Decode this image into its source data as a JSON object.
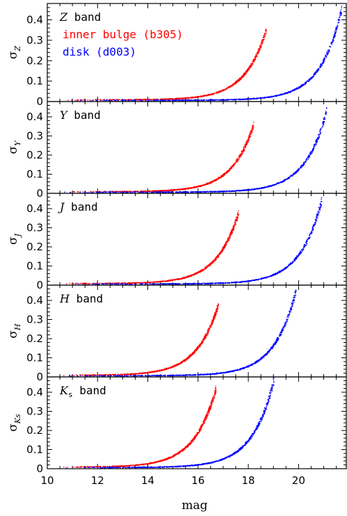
{
  "chart_data": {
    "type": "scatter",
    "xlabel": "mag",
    "xlim": [
      10,
      21.9
    ],
    "x_ticks": [
      "10",
      "12",
      "14",
      "16",
      "18",
      "20"
    ],
    "y_ticks": [
      "0",
      "0.1",
      "0.2",
      "0.3",
      "0.4"
    ],
    "legend": {
      "placement": "top-left of first panel",
      "entries": [
        "inner bulge (b305)",
        "disk (d003)"
      ]
    },
    "colors": {
      "bulge": "#ff0000",
      "disk": "#0000ff"
    },
    "panels": [
      {
        "band_label": "Z band",
        "band_letter": "Z",
        "band_rest": " band",
        "ylabel_base": "σ",
        "ylabel_sub": "Z",
        "ylim": [
          0,
          0.48
        ],
        "series": [
          {
            "name": "inner bulge (b305)",
            "x_range": [
              10.5,
              18.7
            ],
            "floor": 0.008,
            "y_max": 0.35
          },
          {
            "name": "disk (d003)",
            "x_range": [
              10.5,
              21.7
            ],
            "floor": 0.006,
            "y_max": 0.45
          }
        ]
      },
      {
        "band_label": "Y band",
        "band_letter": "Y",
        "band_rest": " band",
        "ylabel_base": "σ",
        "ylabel_sub": "Y",
        "ylim": [
          0,
          0.48
        ],
        "series": [
          {
            "name": "inner bulge (b305)",
            "x_range": [
              10.5,
              18.2
            ],
            "floor": 0.008,
            "y_max": 0.36
          },
          {
            "name": "disk (d003)",
            "x_range": [
              10.5,
              21.1
            ],
            "floor": 0.006,
            "y_max": 0.43
          }
        ]
      },
      {
        "band_label": "J band",
        "band_letter": "J",
        "band_rest": " band",
        "ylabel_base": "σ",
        "ylabel_sub": "J",
        "ylim": [
          0,
          0.48
        ],
        "series": [
          {
            "name": "inner bulge (b305)",
            "x_range": [
              10.5,
              17.6
            ],
            "floor": 0.008,
            "y_max": 0.38
          },
          {
            "name": "disk (d003)",
            "x_range": [
              10.5,
              20.9
            ],
            "floor": 0.006,
            "y_max": 0.44
          }
        ]
      },
      {
        "band_label": "H band",
        "band_letter": "H",
        "band_rest": " band",
        "ylabel_base": "σ",
        "ylabel_sub": "H",
        "ylim": [
          0,
          0.48
        ],
        "series": [
          {
            "name": "inner bulge (b305)",
            "x_range": [
              10.5,
              16.8
            ],
            "floor": 0.008,
            "y_max": 0.38
          },
          {
            "name": "disk (d003)",
            "x_range": [
              10.5,
              19.9
            ],
            "floor": 0.006,
            "y_max": 0.46
          }
        ]
      },
      {
        "band_label": "Ks band",
        "band_letter": "K",
        "band_letter_sub": "s",
        "band_rest": " band",
        "ylabel_base": "σ",
        "ylabel_sub": "Ks",
        "ylim": [
          0,
          0.48
        ],
        "series": [
          {
            "name": "inner bulge (b305)",
            "x_range": [
              10.5,
              16.7
            ],
            "floor": 0.008,
            "y_max": 0.42
          },
          {
            "name": "disk (d003)",
            "x_range": [
              10.5,
              19.0
            ],
            "floor": 0.006,
            "y_max": 0.46
          }
        ]
      }
    ]
  }
}
